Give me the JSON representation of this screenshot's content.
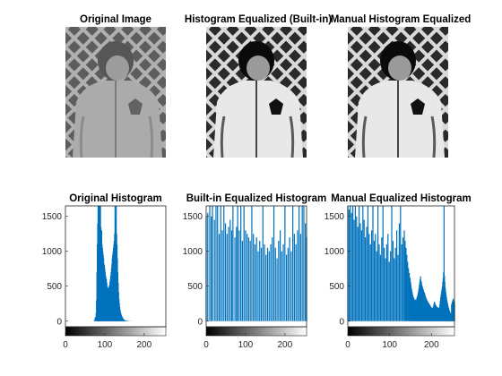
{
  "figure": {
    "panels_top": [
      {
        "title": "Original Image",
        "image": "grayscale photo of a child in a jacket - low contrast"
      },
      {
        "title": "Histogram Equalized (Built-in)",
        "image": "grayscale photo of a child in a jacket - equalized"
      },
      {
        "title": "Manual Histogram Equalized",
        "image": "grayscale photo of a child in a jacket - equalized"
      }
    ]
  },
  "colors": {
    "bar": "#0072BD",
    "axis": "#262626",
    "background": "#ffffff"
  },
  "chart_data": [
    {
      "type": "bar",
      "title": "Original Histogram",
      "xlim": [
        0,
        255
      ],
      "ylim": [
        -80,
        1650
      ],
      "xticks": [
        0,
        100,
        200
      ],
      "yticks": [
        0,
        500,
        1000,
        1500
      ],
      "colorbar": "gray ramp 0-255",
      "values": [
        [
          74,
          25
        ],
        [
          76,
          60
        ],
        [
          78,
          120
        ],
        [
          79,
          300
        ],
        [
          80,
          700
        ],
        [
          81,
          1100
        ],
        [
          82,
          1400
        ],
        [
          83,
          1650
        ],
        [
          84,
          1600
        ],
        [
          85,
          1650
        ],
        [
          86,
          1500
        ],
        [
          87,
          1650
        ],
        [
          88,
          1400
        ],
        [
          89,
          1650
        ],
        [
          90,
          1350
        ],
        [
          91,
          1200
        ],
        [
          92,
          1300
        ],
        [
          93,
          1100
        ],
        [
          94,
          1050
        ],
        [
          95,
          1000
        ],
        [
          96,
          950
        ],
        [
          97,
          900
        ],
        [
          98,
          820
        ],
        [
          99,
          800
        ],
        [
          100,
          750
        ],
        [
          101,
          700
        ],
        [
          102,
          650
        ],
        [
          103,
          620
        ],
        [
          104,
          600
        ],
        [
          105,
          550
        ],
        [
          106,
          500
        ],
        [
          107,
          480
        ],
        [
          108,
          470
        ],
        [
          109,
          460
        ],
        [
          110,
          480
        ],
        [
          111,
          500
        ],
        [
          112,
          520
        ],
        [
          113,
          560
        ],
        [
          114,
          600
        ],
        [
          115,
          650
        ],
        [
          116,
          700
        ],
        [
          117,
          760
        ],
        [
          118,
          820
        ],
        [
          119,
          900
        ],
        [
          120,
          950
        ],
        [
          121,
          1000
        ],
        [
          122,
          1050
        ],
        [
          123,
          1100
        ],
        [
          124,
          1150
        ],
        [
          125,
          1250
        ],
        [
          126,
          1650
        ],
        [
          127,
          1400
        ],
        [
          128,
          1500
        ],
        [
          129,
          1650
        ],
        [
          130,
          1250
        ],
        [
          131,
          1100
        ],
        [
          132,
          900
        ],
        [
          133,
          700
        ],
        [
          134,
          550
        ],
        [
          135,
          420
        ],
        [
          136,
          320
        ],
        [
          137,
          260
        ],
        [
          138,
          200
        ],
        [
          139,
          160
        ],
        [
          140,
          130
        ],
        [
          141,
          110
        ],
        [
          142,
          90
        ],
        [
          143,
          75
        ],
        [
          144,
          60
        ],
        [
          145,
          50
        ],
        [
          146,
          40
        ],
        [
          147,
          32
        ],
        [
          148,
          26
        ],
        [
          149,
          20
        ],
        [
          150,
          16
        ],
        [
          152,
          12
        ],
        [
          154,
          9
        ],
        [
          156,
          7
        ],
        [
          158,
          5
        ],
        [
          160,
          4
        ],
        [
          163,
          3
        ],
        [
          166,
          2
        ],
        [
          170,
          1
        ]
      ]
    },
    {
      "type": "bar",
      "title": "Built-in Equalized Histogram",
      "xlim": [
        0,
        255
      ],
      "ylim": [
        -80,
        1650
      ],
      "xticks": [
        0,
        100,
        200
      ],
      "yticks": [
        0,
        500,
        1000,
        1500
      ],
      "colorbar": "gray ramp 0-255",
      "values": [
        [
          0,
          1500
        ],
        [
          4,
          1550
        ],
        [
          9,
          1650
        ],
        [
          13,
          1500
        ],
        [
          16,
          1650
        ],
        [
          21,
          1450
        ],
        [
          25,
          1650
        ],
        [
          29,
          1650
        ],
        [
          33,
          1250
        ],
        [
          37,
          1650
        ],
        [
          41,
          1300
        ],
        [
          45,
          1650
        ],
        [
          49,
          1400
        ],
        [
          53,
          1250
        ],
        [
          57,
          1350
        ],
        [
          61,
          1450
        ],
        [
          65,
          1300
        ],
        [
          68,
          1650
        ],
        [
          73,
          1200
        ],
        [
          77,
          1350
        ],
        [
          80,
          1650
        ],
        [
          84,
          1300
        ],
        [
          88,
          1650
        ],
        [
          92,
          1150
        ],
        [
          96,
          1650
        ],
        [
          100,
          1300
        ],
        [
          104,
          1250
        ],
        [
          108,
          1200
        ],
        [
          112,
          1150
        ],
        [
          116,
          1650
        ],
        [
          120,
          1250
        ],
        [
          124,
          1100
        ],
        [
          128,
          1200
        ],
        [
          132,
          1000
        ],
        [
          136,
          1150
        ],
        [
          140,
          1050
        ],
        [
          144,
          1650
        ],
        [
          148,
          1100
        ],
        [
          152,
          950
        ],
        [
          156,
          1050
        ],
        [
          160,
          1000
        ],
        [
          164,
          1100
        ],
        [
          168,
          1200
        ],
        [
          172,
          1650
        ],
        [
          176,
          1050
        ],
        [
          180,
          900
        ],
        [
          184,
          1150
        ],
        [
          188,
          1300
        ],
        [
          192,
          1000
        ],
        [
          196,
          1100
        ],
        [
          200,
          1650
        ],
        [
          204,
          950
        ],
        [
          208,
          1050
        ],
        [
          212,
          1200
        ],
        [
          216,
          1000
        ],
        [
          220,
          1650
        ],
        [
          224,
          1250
        ],
        [
          228,
          1100
        ],
        [
          232,
          1300
        ],
        [
          236,
          1650
        ],
        [
          240,
          1250
        ],
        [
          244,
          1650
        ],
        [
          248,
          1650
        ],
        [
          252,
          1400
        ],
        [
          255,
          1200
        ]
      ]
    },
    {
      "type": "bar",
      "title": "Manual Equalized Histogram",
      "xlim": [
        0,
        255
      ],
      "ylim": [
        -80,
        1650
      ],
      "xticks": [
        0,
        100,
        200
      ],
      "yticks": [
        0,
        500,
        1000,
        1500
      ],
      "colorbar": "gray ramp 0-255",
      "values": [
        [
          0,
          1650
        ],
        [
          3,
          1600
        ],
        [
          6,
          1650
        ],
        [
          9,
          1550
        ],
        [
          12,
          1650
        ],
        [
          15,
          1450
        ],
        [
          18,
          1650
        ],
        [
          21,
          1500
        ],
        [
          24,
          1350
        ],
        [
          27,
          1650
        ],
        [
          30,
          1400
        ],
        [
          33,
          1300
        ],
        [
          36,
          1650
        ],
        [
          39,
          1450
        ],
        [
          42,
          1200
        ],
        [
          45,
          1350
        ],
        [
          48,
          1650
        ],
        [
          51,
          1250
        ],
        [
          54,
          1100
        ],
        [
          57,
          1300
        ],
        [
          60,
          1650
        ],
        [
          63,
          1150
        ],
        [
          66,
          1250
        ],
        [
          69,
          1000
        ],
        [
          72,
          1650
        ],
        [
          75,
          1100
        ],
        [
          78,
          950
        ],
        [
          81,
          1200
        ],
        [
          84,
          1650
        ],
        [
          87,
          1050
        ],
        [
          90,
          900
        ],
        [
          93,
          1100
        ],
        [
          96,
          1250
        ],
        [
          99,
          850
        ],
        [
          102,
          1000
        ],
        [
          105,
          1650
        ],
        [
          108,
          1150
        ],
        [
          111,
          900
        ],
        [
          114,
          1050
        ],
        [
          117,
          1300
        ],
        [
          120,
          950
        ],
        [
          123,
          1400
        ],
        [
          126,
          1650
        ],
        [
          129,
          1100
        ],
        [
          132,
          1200
        ],
        [
          135,
          1300
        ],
        [
          137,
          1150
        ],
        [
          139,
          1050
        ],
        [
          141,
          950
        ],
        [
          143,
          850
        ],
        [
          145,
          760
        ],
        [
          147,
          690
        ],
        [
          149,
          620
        ],
        [
          150,
          560
        ],
        [
          151,
          520
        ],
        [
          152,
          470
        ],
        [
          153,
          440
        ],
        [
          154,
          410
        ],
        [
          155,
          380
        ],
        [
          156,
          360
        ],
        [
          157,
          340
        ],
        [
          158,
          330
        ],
        [
          159,
          310
        ],
        [
          160,
          300
        ],
        [
          161,
          290
        ],
        [
          162,
          310
        ],
        [
          163,
          280
        ],
        [
          164,
          300
        ],
        [
          165,
          330
        ],
        [
          166,
          360
        ],
        [
          167,
          320
        ],
        [
          168,
          400
        ],
        [
          169,
          430
        ],
        [
          170,
          470
        ],
        [
          171,
          520
        ],
        [
          172,
          560
        ],
        [
          173,
          600
        ],
        [
          174,
          640
        ],
        [
          175,
          580
        ],
        [
          176,
          560
        ],
        [
          177,
          520
        ],
        [
          178,
          500
        ],
        [
          179,
          480
        ],
        [
          180,
          460
        ],
        [
          181,
          440
        ],
        [
          182,
          420
        ],
        [
          183,
          410
        ],
        [
          184,
          390
        ],
        [
          185,
          370
        ],
        [
          186,
          350
        ],
        [
          187,
          330
        ],
        [
          188,
          320
        ],
        [
          189,
          300
        ],
        [
          190,
          290
        ],
        [
          191,
          280
        ],
        [
          192,
          270
        ],
        [
          193,
          260
        ],
        [
          194,
          250
        ],
        [
          195,
          240
        ],
        [
          196,
          230
        ],
        [
          197,
          220
        ],
        [
          198,
          210
        ],
        [
          199,
          200
        ],
        [
          200,
          195
        ],
        [
          201,
          190
        ],
        [
          202,
          185
        ],
        [
          203,
          180
        ],
        [
          204,
          200
        ],
        [
          205,
          220
        ],
        [
          206,
          250
        ],
        [
          207,
          280
        ],
        [
          208,
          260
        ],
        [
          209,
          240
        ],
        [
          210,
          230
        ],
        [
          211,
          220
        ],
        [
          212,
          210
        ],
        [
          213,
          205
        ],
        [
          214,
          200
        ],
        [
          215,
          195
        ],
        [
          216,
          190
        ],
        [
          217,
          185
        ],
        [
          218,
          180
        ],
        [
          219,
          200
        ],
        [
          220,
          240
        ],
        [
          221,
          290
        ],
        [
          222,
          340
        ],
        [
          223,
          380
        ],
        [
          224,
          420
        ],
        [
          225,
          460
        ],
        [
          226,
          500
        ],
        [
          227,
          560
        ],
        [
          228,
          620
        ],
        [
          229,
          700
        ],
        [
          230,
          1650
        ],
        [
          231,
          650
        ],
        [
          232,
          560
        ],
        [
          233,
          480
        ],
        [
          234,
          420
        ],
        [
          235,
          380
        ],
        [
          236,
          340
        ],
        [
          237,
          300
        ],
        [
          238,
          270
        ],
        [
          239,
          240
        ],
        [
          240,
          210
        ],
        [
          241,
          190
        ],
        [
          242,
          170
        ],
        [
          243,
          150
        ],
        [
          244,
          130
        ],
        [
          245,
          120
        ],
        [
          246,
          110
        ],
        [
          247,
          100
        ],
        [
          248,
          240
        ],
        [
          249,
          260
        ],
        [
          250,
          280
        ],
        [
          251,
          300
        ],
        [
          252,
          320
        ],
        [
          253,
          300
        ],
        [
          254,
          280
        ],
        [
          255,
          260
        ]
      ]
    }
  ]
}
